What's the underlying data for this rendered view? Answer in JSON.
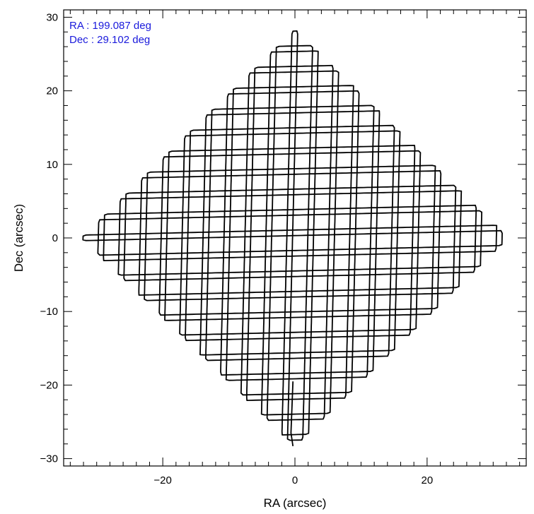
{
  "chart_data": {
    "type": "line",
    "title": "",
    "xlabel": "RA (arcsec)",
    "ylabel": "Dec (arcsec)",
    "xlim": [
      -35,
      35
    ],
    "ylim": [
      -31,
      31
    ],
    "x_ticks": [
      -20,
      0,
      20
    ],
    "y_ticks": [
      -30,
      -20,
      -10,
      0,
      10,
      20,
      30
    ],
    "x_tick_labels": [
      "−20",
      "0",
      "20"
    ],
    "y_tick_labels": [
      "−30",
      "−20",
      "−10",
      "0",
      "10",
      "20",
      "30"
    ],
    "grid": false,
    "legend": "none",
    "annotations": [
      {
        "text": "RA : 199.087 deg",
        "color": "#1a1adc",
        "position": "top-left"
      },
      {
        "text": "Dec : 29.102 deg",
        "color": "#1a1adc",
        "position": "top-left"
      }
    ],
    "series": [
      {
        "color": "#000000",
        "description_points": {
          "x": [
            0.5,
            32.5,
            0.0,
            -32.0,
            0.5
          ],
          "y": [
            28.5,
            0.0,
            -28.5,
            0.5,
            28.5
          ]
        },
        "pattern": {
          "ra_amplitude": 32.5,
          "dec_amplitude": 28.5,
          "ra_frequency": 1.0,
          "dec_frequency": 1.05,
          "cycles": 40,
          "start": [
            -0.3,
            -19.5
          ]
        }
      }
    ]
  }
}
